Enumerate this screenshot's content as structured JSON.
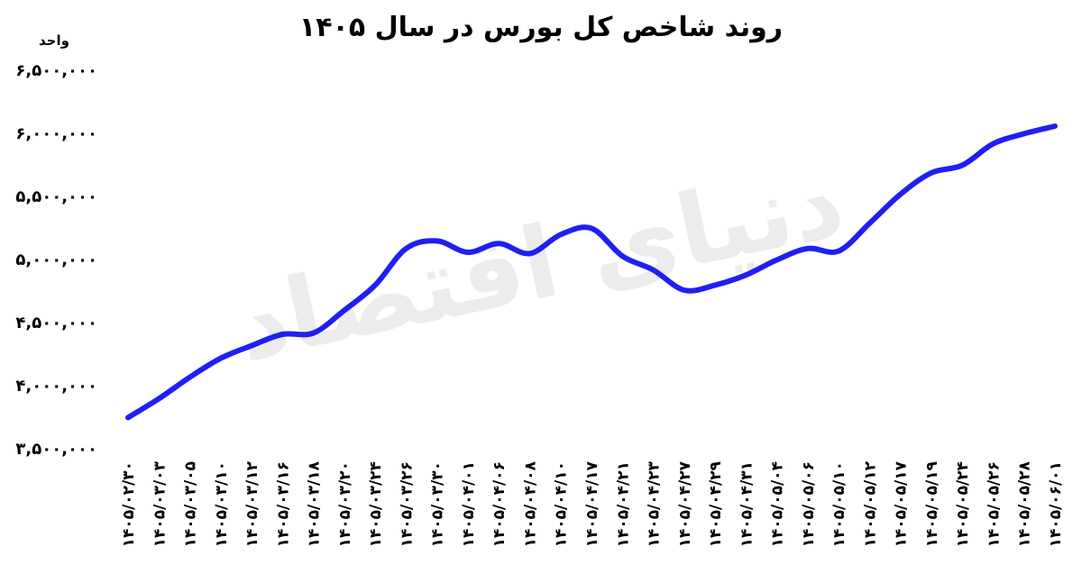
{
  "chart_data": {
    "type": "line",
    "title": "روند شاخص کل بورس در سال ۱۴۰۵",
    "y_label": "واحد",
    "watermark": "دنیای اقتصاد",
    "categories": [
      "۱۴۰۵/۰۲/۳۰",
      "۱۴۰۵/۰۳/۰۳",
      "۱۴۰۵/۰۳/۰۵",
      "۱۴۰۵/۰۳/۱۰",
      "۱۴۰۵/۰۳/۱۲",
      "۱۴۰۵/۰۳/۱۶",
      "۱۴۰۵/۰۳/۱۸",
      "۱۴۰۵/۰۳/۲۰",
      "۱۴۰۵/۰۳/۲۴",
      "۱۴۰۵/۰۳/۲۶",
      "۱۴۰۵/۰۳/۳۰",
      "۱۴۰۵/۰۴/۰۱",
      "۱۴۰۵/۰۴/۰۶",
      "۱۴۰۵/۰۴/۰۸",
      "۱۴۰۵/۰۴/۱۰",
      "۱۴۰۵/۰۴/۱۷",
      "۱۴۰۵/۰۴/۲۱",
      "۱۴۰۵/۰۴/۲۳",
      "۱۴۰۵/۰۴/۲۷",
      "۱۴۰۵/۰۴/۲۹",
      "۱۴۰۵/۰۴/۳۱",
      "۱۴۰۵/۰۵/۰۴",
      "۱۴۰۵/۰۵/۰۶",
      "۱۴۰۵/۰۵/۱۰",
      "۱۴۰۵/۰۵/۱۲",
      "۱۴۰۵/۰۵/۱۷",
      "۱۴۰۵/۰۵/۱۹",
      "۱۴۰۵/۰۵/۲۴",
      "۱۴۰۵/۰۵/۲۶",
      "۱۴۰۵/۰۵/۲۸",
      "۱۴۰۵/۰۶/۰۱"
    ],
    "series": [
      {
        "name": "شاخص کل",
        "color": "#1f1ff5",
        "values": [
          3740000,
          3890000,
          4060000,
          4210000,
          4310000,
          4400000,
          4410000,
          4590000,
          4790000,
          5080000,
          5140000,
          5050000,
          5120000,
          5040000,
          5190000,
          5240000,
          5020000,
          4910000,
          4750000,
          4790000,
          4870000,
          4990000,
          5080000,
          5060000,
          5280000,
          5510000,
          5680000,
          5740000,
          5910000,
          5990000,
          6050000
        ]
      }
    ],
    "ylim": [
      3500000,
      6500000
    ],
    "yticks": [
      {
        "value": 3500000,
        "label": "۳,۵۰۰,۰۰۰"
      },
      {
        "value": 4000000,
        "label": "۴,۰۰۰,۰۰۰"
      },
      {
        "value": 4500000,
        "label": "۴,۵۰۰,۰۰۰"
      },
      {
        "value": 5000000,
        "label": "۵,۰۰۰,۰۰۰"
      },
      {
        "value": 5500000,
        "label": "۵,۵۰۰,۰۰۰"
      },
      {
        "value": 6000000,
        "label": "۶,۰۰۰,۰۰۰"
      },
      {
        "value": 6500000,
        "label": "۶,۵۰۰,۰۰۰"
      }
    ],
    "grid": false
  }
}
